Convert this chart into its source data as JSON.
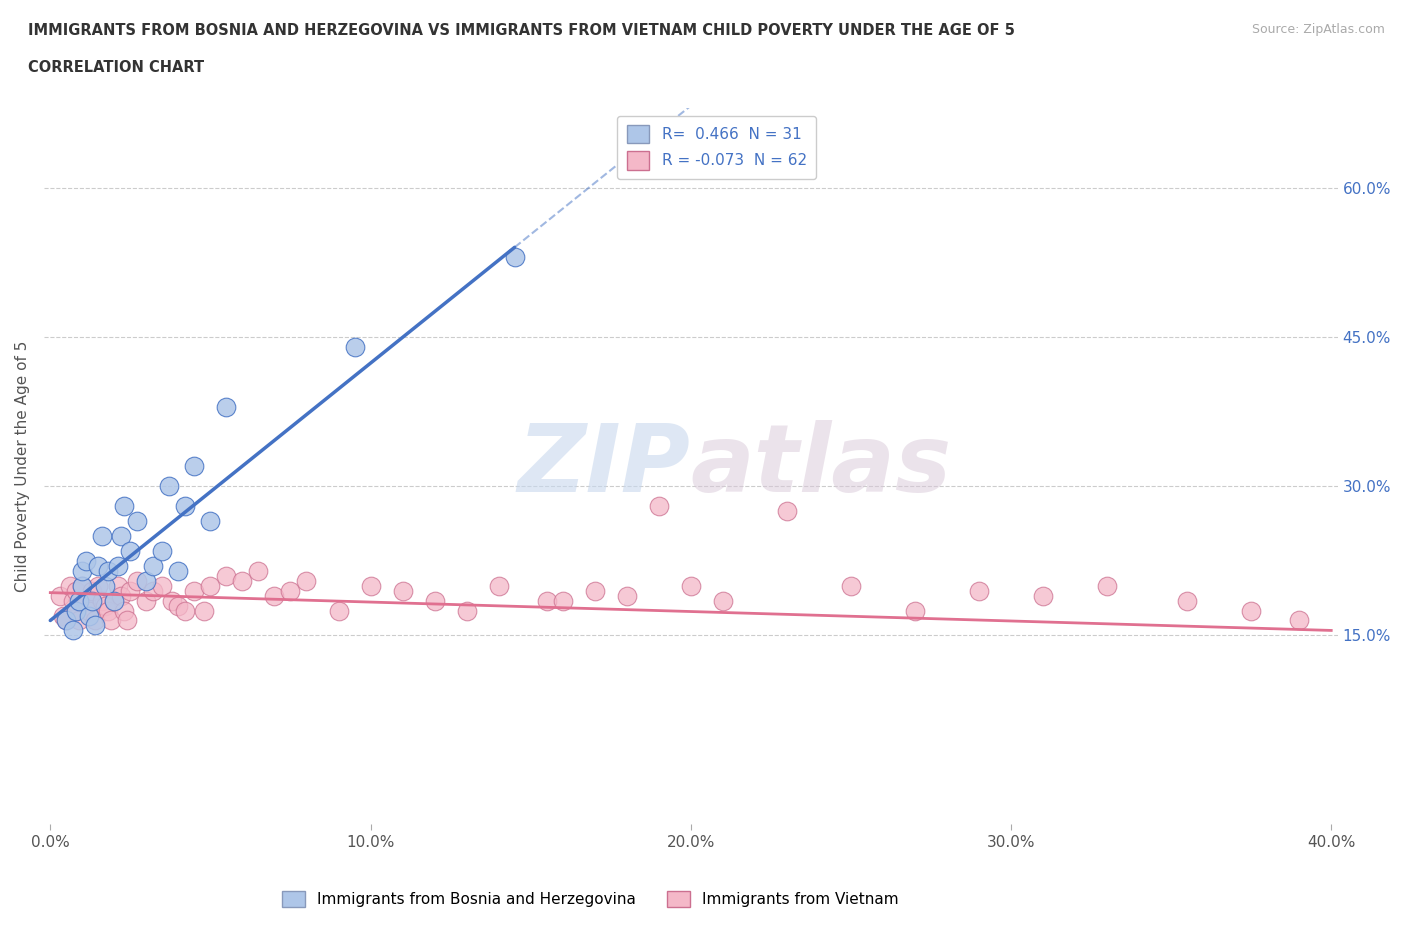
{
  "title_line1": "IMMIGRANTS FROM BOSNIA AND HERZEGOVINA VS IMMIGRANTS FROM VIETNAM CHILD POVERTY UNDER THE AGE OF 5",
  "title_line2": "CORRELATION CHART",
  "source": "Source: ZipAtlas.com",
  "ylabel": "Child Poverty Under the Age of 5",
  "xlim": [
    -0.002,
    0.402
  ],
  "ylim": [
    -0.04,
    0.68
  ],
  "xticks": [
    0.0,
    0.1,
    0.2,
    0.3,
    0.4
  ],
  "xticklabels": [
    "0.0%",
    "10.0%",
    "20.0%",
    "30.0%",
    "40.0%"
  ],
  "yticks": [
    0.15,
    0.3,
    0.45,
    0.6
  ],
  "yticklabels": [
    "15.0%",
    "30.0%",
    "45.0%",
    "60.0%"
  ],
  "grid_color": "#cccccc",
  "background_color": "#ffffff",
  "watermark_zip": "ZIP",
  "watermark_atlas": "atlas",
  "legend_R1": "0.466",
  "legend_N1": "31",
  "legend_R2": "-0.073",
  "legend_N2": "62",
  "color_bosnia": "#aec6e8",
  "color_vietnam": "#f4b8c8",
  "color_line_bosnia": "#4472c4",
  "color_line_vietnam": "#e07090",
  "title_color": "#333333",
  "bosnia_x": [
    0.005,
    0.007,
    0.008,
    0.009,
    0.01,
    0.01,
    0.011,
    0.012,
    0.013,
    0.014,
    0.015,
    0.016,
    0.017,
    0.018,
    0.02,
    0.021,
    0.022,
    0.023,
    0.025,
    0.027,
    0.03,
    0.032,
    0.035,
    0.037,
    0.04,
    0.042,
    0.045,
    0.05,
    0.055,
    0.095,
    0.145
  ],
  "bosnia_y": [
    0.165,
    0.155,
    0.175,
    0.185,
    0.2,
    0.215,
    0.225,
    0.17,
    0.185,
    0.16,
    0.22,
    0.25,
    0.2,
    0.215,
    0.185,
    0.22,
    0.25,
    0.28,
    0.235,
    0.265,
    0.205,
    0.22,
    0.235,
    0.3,
    0.215,
    0.28,
    0.32,
    0.265,
    0.38,
    0.44,
    0.53
  ],
  "vietnam_x": [
    0.003,
    0.004,
    0.005,
    0.006,
    0.007,
    0.008,
    0.008,
    0.009,
    0.01,
    0.011,
    0.012,
    0.013,
    0.014,
    0.015,
    0.016,
    0.017,
    0.018,
    0.019,
    0.02,
    0.021,
    0.022,
    0.023,
    0.024,
    0.025,
    0.027,
    0.03,
    0.032,
    0.035,
    0.038,
    0.04,
    0.042,
    0.045,
    0.048,
    0.05,
    0.055,
    0.06,
    0.065,
    0.07,
    0.075,
    0.08,
    0.09,
    0.1,
    0.11,
    0.12,
    0.13,
    0.14,
    0.155,
    0.16,
    0.17,
    0.18,
    0.19,
    0.2,
    0.21,
    0.23,
    0.25,
    0.27,
    0.29,
    0.31,
    0.33,
    0.355,
    0.375,
    0.39
  ],
  "vietnam_y": [
    0.19,
    0.17,
    0.165,
    0.2,
    0.185,
    0.175,
    0.195,
    0.165,
    0.2,
    0.185,
    0.175,
    0.195,
    0.165,
    0.2,
    0.185,
    0.18,
    0.175,
    0.165,
    0.185,
    0.2,
    0.19,
    0.175,
    0.165,
    0.195,
    0.205,
    0.185,
    0.195,
    0.2,
    0.185,
    0.18,
    0.175,
    0.195,
    0.175,
    0.2,
    0.21,
    0.205,
    0.215,
    0.19,
    0.195,
    0.205,
    0.175,
    0.2,
    0.195,
    0.185,
    0.175,
    0.2,
    0.185,
    0.185,
    0.195,
    0.19,
    0.28,
    0.2,
    0.185,
    0.275,
    0.2,
    0.175,
    0.195,
    0.19,
    0.2,
    0.185,
    0.175,
    0.165
  ],
  "trend_bosnia_x0": 0.0,
  "trend_bosnia_y0": 0.165,
  "trend_bosnia_x1": 0.145,
  "trend_bosnia_y1": 0.54,
  "trend_vietnam_x0": 0.0,
  "trend_vietnam_y0": 0.193,
  "trend_vietnam_x1": 0.4,
  "trend_vietnam_y1": 0.155
}
